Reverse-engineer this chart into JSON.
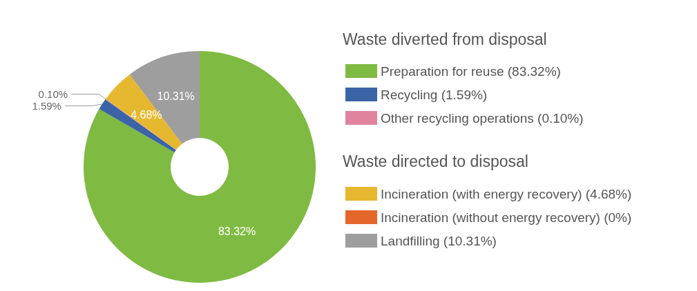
{
  "chart_data": {
    "type": "donut",
    "legend_title": "Waste diverted from disposal",
    "annotations": [
      "Waste directed to disposal"
    ],
    "categories": [
      "Preparation for reuse (83.32%)",
      "Recycling (1.59%)",
      "Other recycling operations (0.10%)",
      "Incineration (with energy recovery) (4.68%)",
      "Incineration (without energy recovery) (0%)",
      "Landfilling (10.31%)"
    ],
    "values": [
      83.32,
      1.59,
      0.1,
      4.68,
      0,
      10.31
    ],
    "colors": [
      "#7fba42",
      "#3b64a6",
      "#e0839f",
      "#e6b82f",
      "#e5662a",
      "#9e9e9e"
    ],
    "value_labels": [
      "83.32%",
      "1.59%",
      "0.10%",
      "4.68%",
      null,
      "10.31%"
    ],
    "legend": "right"
  }
}
